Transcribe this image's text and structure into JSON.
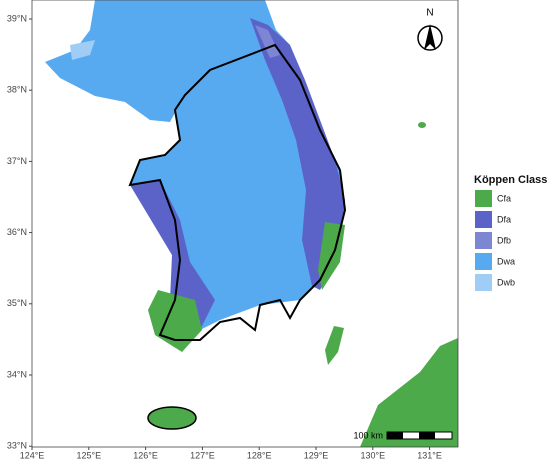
{
  "map": {
    "lat_ticks": [
      {
        "value": 33,
        "label": "33°N"
      },
      {
        "value": 34,
        "label": "34°N"
      },
      {
        "value": 35,
        "label": "35°N"
      },
      {
        "value": 36,
        "label": "36°N"
      },
      {
        "value": 37,
        "label": "37°N"
      },
      {
        "value": 38,
        "label": "38°N"
      },
      {
        "value": 39,
        "label": "39°N"
      }
    ],
    "lon_ticks": [
      {
        "value": 124,
        "label": "124°E"
      },
      {
        "value": 125,
        "label": "125°E"
      },
      {
        "value": 126,
        "label": "126°E"
      },
      {
        "value": 127,
        "label": "127°E"
      },
      {
        "value": 128,
        "label": "128°E"
      },
      {
        "value": 129,
        "label": "129°E"
      },
      {
        "value": 130,
        "label": "130°E"
      },
      {
        "value": 131,
        "label": "131°E"
      }
    ],
    "north_label": "N",
    "scale_label": "100 km"
  },
  "legend": {
    "title": "Köppen Class",
    "items": [
      {
        "label": "Cfa",
        "color": "#4caa4a"
      },
      {
        "label": "Dfa",
        "color": "#5b63c9"
      },
      {
        "label": "Dfb",
        "color": "#7c86d2"
      },
      {
        "label": "Dwa",
        "color": "#58aaf0"
      },
      {
        "label": "Dwb",
        "color": "#9fcdf6"
      }
    ]
  }
}
